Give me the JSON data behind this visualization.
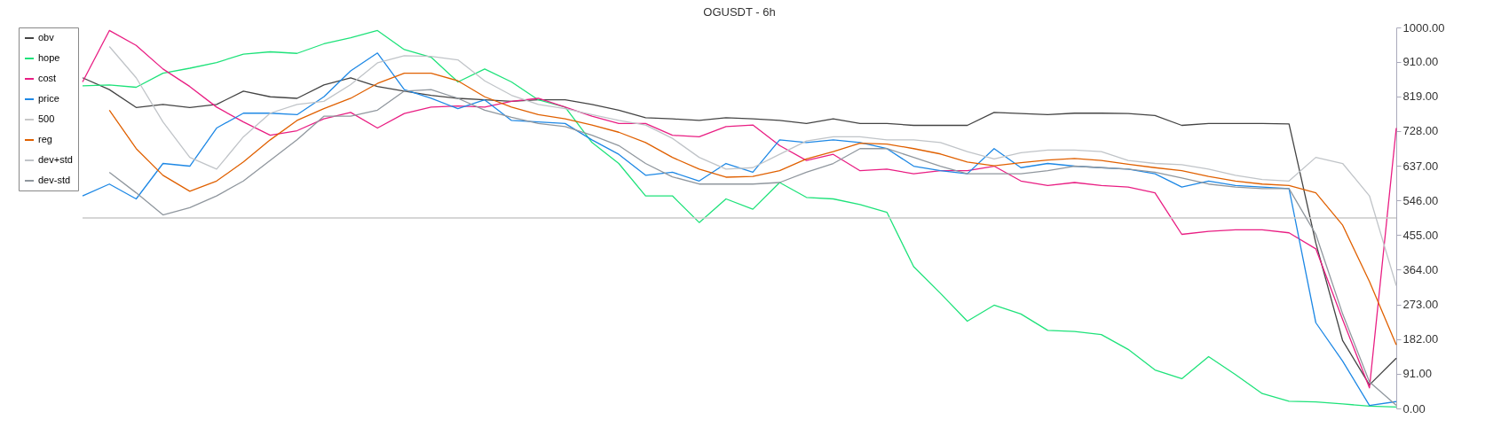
{
  "chart_data": {
    "type": "line",
    "title": "OGUSDT - 6h",
    "categories": [
      null,
      null,
      null,
      null,
      null,
      null,
      null,
      null,
      null,
      null,
      null,
      null,
      null,
      null,
      null,
      null,
      null,
      null,
      null,
      null,
      null,
      null,
      null,
      null,
      null,
      null,
      null,
      null,
      null,
      null,
      null,
      null,
      null,
      null,
      null,
      null,
      null,
      null,
      null,
      null,
      null,
      null,
      null,
      null,
      null,
      null,
      null,
      null,
      null,
      null
    ],
    "ylim": [
      0,
      1000
    ],
    "yticks": [
      {
        "value": 0,
        "label": "0.00"
      },
      {
        "value": 91,
        "label": "91.00"
      },
      {
        "value": 182,
        "label": "182.00"
      },
      {
        "value": 273,
        "label": "273.00"
      },
      {
        "value": 364,
        "label": "364.00"
      },
      {
        "value": 455,
        "label": "455.00"
      },
      {
        "value": 546,
        "label": "546.00"
      },
      {
        "value": 637,
        "label": "637.00"
      },
      {
        "value": 728,
        "label": "728.00"
      },
      {
        "value": 819,
        "label": "819.00"
      },
      {
        "value": 910,
        "label": "910.00"
      },
      {
        "value": 1000,
        "label": "1000.00"
      }
    ],
    "tick_labels": "y",
    "grid": false,
    "legend": "left",
    "line_style": "solid",
    "series": [
      {
        "name": "obv",
        "color": "#444444",
        "values": [
          868,
          837,
          790,
          798,
          790,
          798,
          833,
          818,
          814,
          849,
          868,
          845,
          833,
          822,
          814,
          810,
          806,
          810,
          810,
          798,
          783,
          763,
          760,
          756,
          763,
          760,
          756,
          748,
          760,
          748,
          748,
          743,
          743,
          743,
          777,
          774,
          771,
          775,
          775,
          774,
          769,
          743,
          748,
          748,
          748,
          747,
          434,
          178,
          62,
          132
        ]
      },
      {
        "name": "hope",
        "color": "#1ee27a",
        "values": [
          847,
          849,
          843,
          880,
          893,
          908,
          930,
          936,
          932,
          957,
          973,
          992,
          942,
          922,
          857,
          891,
          857,
          810,
          791,
          698,
          643,
          558,
          558,
          488,
          550,
          523,
          593,
          554,
          550,
          535,
          515,
          372,
          302,
          229,
          271,
          248,
          205,
          202,
          194,
          155,
          101,
          78,
          136,
          89,
          39,
          19,
          17,
          12,
          6,
          4
        ]
      },
      {
        "name": "cost",
        "color": "#e91e83",
        "values": [
          857,
          992,
          953,
          891,
          845,
          791,
          752,
          717,
          729,
          760,
          777,
          736,
          774,
          791,
          794,
          791,
          806,
          814,
          791,
          767,
          748,
          748,
          717,
          713,
          740,
          744,
          690,
          651,
          667,
          624,
          628,
          616,
          624,
          624,
          636,
          597,
          585,
          593,
          585,
          581,
          566,
          457,
          465,
          469,
          469,
          461,
          419,
          233,
          54,
          736
        ]
      },
      {
        "name": "price",
        "color": "#1e88e5",
        "values": [
          558,
          589,
          550,
          643,
          636,
          736,
          775,
          775,
          771,
          818,
          886,
          933,
          837,
          814,
          787,
          810,
          756,
          752,
          748,
          705,
          667,
          612,
          620,
          597,
          643,
          620,
          705,
          698,
          705,
          698,
          682,
          636,
          624,
          616,
          682,
          632,
          643,
          636,
          632,
          628,
          616,
          581,
          597,
          585,
          581,
          577,
          225,
          124,
          8,
          18
        ]
      },
      {
        "name": "500",
        "color": "#c8c8c8",
        "values": [
          500,
          500,
          500,
          500,
          500,
          500,
          500,
          500,
          500,
          500,
          500,
          500,
          500,
          500,
          500,
          500,
          500,
          500,
          500,
          500,
          500,
          500,
          500,
          500,
          500,
          500,
          500,
          500,
          500,
          500,
          500,
          500,
          500,
          500,
          500,
          500,
          500,
          500,
          500,
          500,
          500,
          500,
          500,
          500,
          500,
          500,
          500,
          500,
          500,
          500
        ]
      },
      {
        "name": "reg",
        "color": "#e06000",
        "values": [
          null,
          783,
          682,
          612,
          570,
          597,
          647,
          705,
          756,
          787,
          814,
          853,
          880,
          880,
          860,
          818,
          791,
          771,
          760,
          744,
          725,
          698,
          659,
          628,
          607,
          609,
          624,
          655,
          674,
          696,
          694,
          682,
          668,
          647,
          637,
          645,
          652,
          656,
          651,
          641,
          632,
          624,
          609,
          597,
          589,
          585,
          566,
          481,
          333,
          167
        ]
      },
      {
        "name": "dev+std",
        "color": "#c0c4c8",
        "values": [
          null,
          950,
          868,
          752,
          659,
          628,
          713,
          775,
          798,
          806,
          850,
          907,
          926,
          924,
          915,
          860,
          822,
          798,
          787,
          771,
          756,
          744,
          709,
          659,
          628,
          632,
          667,
          702,
          713,
          713,
          705,
          705,
          698,
          674,
          655,
          671,
          678,
          678,
          674,
          651,
          643,
          640,
          628,
          612,
          601,
          597,
          659,
          643,
          558,
          322
        ]
      },
      {
        "name": "dev-std",
        "color": "#90979e",
        "values": [
          null,
          620,
          566,
          508,
          527,
          558,
          597,
          651,
          705,
          767,
          767,
          783,
          833,
          837,
          814,
          783,
          764,
          748,
          740,
          717,
          690,
          643,
          608,
          589,
          589,
          589,
          593,
          620,
          643,
          682,
          682,
          659,
          636,
          616,
          616,
          616,
          624,
          636,
          632,
          628,
          620,
          605,
          589,
          581,
          577,
          577,
          457,
          248,
          70,
          8
        ]
      }
    ]
  }
}
